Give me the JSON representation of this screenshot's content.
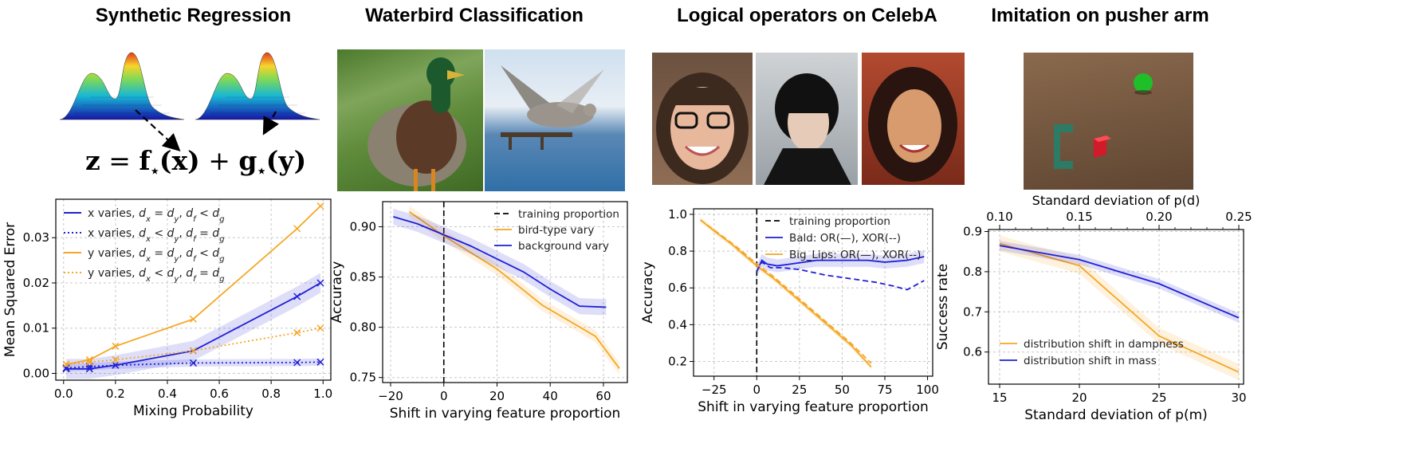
{
  "titles": {
    "p1": "Synthetic Regression",
    "p2": "Waterbird Classification",
    "p3": "Logical operators on CelebA",
    "p4": "Imitation on pusher arm"
  },
  "equation": {
    "lhs": "z",
    "eq": " = ",
    "f": "f",
    "x": "(x)",
    "plus": " + ",
    "g": "g",
    "y": "(y)",
    "star": "⋆"
  },
  "colors": {
    "blue": "#1f1fd6",
    "orange": "#f5a623",
    "dashed_black": "#000000"
  },
  "chart_data": [
    {
      "id": "c1",
      "type": "line",
      "title": "",
      "xlabel": "Mixing Probability",
      "ylabel": "Mean Squared Error",
      "xlim": [
        -0.03,
        1.03
      ],
      "ylim": [
        -0.0015,
        0.0385
      ],
      "xticks": [
        0.0,
        0.2,
        0.4,
        0.6,
        0.8,
        1.0
      ],
      "xticklabels": [
        "0.0",
        "0.2",
        "0.4",
        "0.6",
        "0.8",
        "1.0"
      ],
      "yticks": [
        0.0,
        0.01,
        0.02,
        0.03
      ],
      "yticklabels": [
        "0.00",
        "0.01",
        "0.02",
        "0.03"
      ],
      "grid": true,
      "legend": "upper-left",
      "series": [
        {
          "name": "x varies, d_x = d_y, d_f < d_g",
          "color": "blue",
          "style": "solid",
          "marker": "x",
          "x": [
            0.01,
            0.1,
            0.2,
            0.5,
            0.9,
            0.99
          ],
          "y": [
            0.001,
            0.001,
            0.0018,
            0.005,
            0.017,
            0.02
          ],
          "band": 0.0022
        },
        {
          "name": "x varies, d_x < d_y, d_f = d_g",
          "color": "blue",
          "style": "dotted",
          "marker": "x",
          "x": [
            0.01,
            0.1,
            0.2,
            0.5,
            0.9,
            0.99
          ],
          "y": [
            0.0012,
            0.0015,
            0.0018,
            0.0023,
            0.0024,
            0.0025
          ],
          "band": 0.0008
        },
        {
          "name": "y varies, d_x = d_y, d_f < d_g",
          "color": "orange",
          "style": "solid",
          "marker": "x",
          "x": [
            0.01,
            0.1,
            0.2,
            0.5,
            0.9,
            0.99
          ],
          "y": [
            0.002,
            0.003,
            0.006,
            0.012,
            0.032,
            0.037
          ],
          "band": 0.0
        },
        {
          "name": "y varies, d_x < d_y, d_f = d_g",
          "color": "orange",
          "style": "dotted",
          "marker": "x",
          "x": [
            0.01,
            0.1,
            0.2,
            0.5,
            0.9,
            0.99
          ],
          "y": [
            0.002,
            0.0025,
            0.003,
            0.005,
            0.009,
            0.01
          ],
          "band": 0.0
        }
      ],
      "legend_labels": [
        {
          "pre": "x varies, ",
          "sub1": "x",
          "mid": " = ",
          "sub2": "y",
          "mid2": ", ",
          "sub3": "f",
          "rel": " < ",
          "sub4": "g"
        },
        {
          "pre": "x varies, ",
          "sub1": "x",
          "mid": " < ",
          "sub2": "y",
          "mid2": ", ",
          "sub3": "f",
          "rel": " = ",
          "sub4": "g"
        },
        {
          "pre": "y varies, ",
          "sub1": "x",
          "mid": " = ",
          "sub2": "y",
          "mid2": ", ",
          "sub3": "f",
          "rel": " < ",
          "sub4": "g"
        },
        {
          "pre": "y varies, ",
          "sub1": "x",
          "mid": " < ",
          "sub2": "y",
          "mid2": ", ",
          "sub3": "f",
          "rel": " = ",
          "sub4": "g"
        }
      ]
    },
    {
      "id": "c2",
      "type": "line",
      "title": "",
      "xlabel": "Shift in varying feature proportion",
      "ylabel": "Accuracy",
      "xlim": [
        -23,
        69
      ],
      "ylim": [
        0.745,
        0.925
      ],
      "xticks": [
        -20,
        0,
        20,
        40,
        60
      ],
      "xticklabels": [
        "−20",
        "0",
        "20",
        "40",
        "60"
      ],
      "yticks": [
        0.75,
        0.8,
        0.85,
        0.9
      ],
      "yticklabels": [
        "0.75",
        "0.80",
        "0.85",
        "0.90"
      ],
      "grid": true,
      "legend": "upper-right",
      "vline": 0,
      "series": [
        {
          "name": "training proportion",
          "color": "dashed_black",
          "style": "dashed",
          "x": [],
          "y": []
        },
        {
          "name": "bird-type vary",
          "color": "orange",
          "style": "solid",
          "x": [
            -13,
            0,
            20,
            37,
            57,
            66
          ],
          "y": [
            0.915,
            0.891,
            0.858,
            0.822,
            0.791,
            0.759
          ],
          "band": 0.006
        },
        {
          "name": "background vary",
          "color": "blue",
          "style": "solid",
          "x": [
            -19,
            -10,
            0,
            10,
            20,
            30,
            40,
            51,
            61
          ],
          "y": [
            0.91,
            0.903,
            0.892,
            0.881,
            0.868,
            0.855,
            0.838,
            0.821,
            0.82
          ],
          "band": 0.008
        }
      ]
    },
    {
      "id": "c3",
      "type": "line",
      "title": "",
      "xlabel": "Shift in varying feature proportion",
      "ylabel": "Accuracy",
      "xlim": [
        -37,
        103
      ],
      "ylim": [
        0.12,
        1.03
      ],
      "xticks": [
        -25,
        0,
        25,
        50,
        75,
        100
      ],
      "xticklabels": [
        "−25",
        "0",
        "25",
        "50",
        "75",
        "100"
      ],
      "yticks": [
        0.2,
        0.4,
        0.6,
        0.8,
        1.0
      ],
      "yticklabels": [
        "0.2",
        "0.4",
        "0.6",
        "0.8",
        "1.0"
      ],
      "grid": true,
      "legend": "upper-right",
      "vline": 0,
      "series": [
        {
          "name": "training proportion",
          "color": "dashed_black",
          "style": "dashed",
          "x": [],
          "y": []
        },
        {
          "name": "Bald: OR(—), XOR(--)",
          "color": "blue",
          "style": "solid",
          "x": [
            0,
            3,
            6,
            12,
            20,
            35,
            50,
            65,
            75,
            88,
            98
          ],
          "y": [
            0.69,
            0.75,
            0.73,
            0.72,
            0.73,
            0.75,
            0.75,
            0.75,
            0.74,
            0.75,
            0.77
          ],
          "band": 0.035
        },
        {
          "name": "Big_Lips: OR(—), XOR(--)",
          "color": "orange",
          "style": "solid",
          "x": [
            -33,
            -25,
            -15,
            -5,
            0,
            10,
            25,
            40,
            55,
            67
          ],
          "y": [
            0.97,
            0.91,
            0.84,
            0.76,
            0.72,
            0.65,
            0.53,
            0.41,
            0.29,
            0.17
          ],
          "band": 0.015
        },
        {
          "name": "",
          "color": "blue",
          "style": "dashed",
          "x": [
            0,
            3,
            8,
            15,
            25,
            40,
            55,
            70,
            80,
            88,
            98
          ],
          "y": [
            0.69,
            0.74,
            0.71,
            0.71,
            0.7,
            0.67,
            0.65,
            0.63,
            0.61,
            0.59,
            0.64
          ],
          "band": 0.0
        },
        {
          "name": "",
          "color": "orange",
          "style": "dashed",
          "x": [
            -33,
            -20,
            -10,
            0,
            10,
            25,
            40,
            55,
            67
          ],
          "y": [
            0.97,
            0.88,
            0.81,
            0.73,
            0.66,
            0.54,
            0.42,
            0.3,
            0.19
          ],
          "band": 0.0
        }
      ]
    },
    {
      "id": "c4",
      "type": "line",
      "title": "",
      "xlabel": "Standard deviation of p(m)",
      "x2label": "Standard deviation of p(d)",
      "ylabel": "Success rate",
      "xlim": [
        14.3,
        30.3
      ],
      "ylim": [
        0.52,
        0.905
      ],
      "x2lim": [
        0.093,
        0.253
      ],
      "xticks": [
        15,
        20,
        25,
        30
      ],
      "xticklabels": [
        "15",
        "20",
        "25",
        "30"
      ],
      "x2ticks": [
        0.1,
        0.15,
        0.2,
        0.25
      ],
      "x2ticklabels": [
        "0.10",
        "0.15",
        "0.20",
        "0.25"
      ],
      "yticks": [
        0.6,
        0.7,
        0.8,
        0.9
      ],
      "yticklabels": [
        "0.6",
        "0.7",
        "0.8",
        "0.9"
      ],
      "grid": true,
      "legend": "lower-left",
      "series": [
        {
          "name": "distribution shift in dampness",
          "color": "orange",
          "style": "solid",
          "x": [
            15,
            20,
            25,
            30
          ],
          "y": [
            0.87,
            0.815,
            0.64,
            0.55
          ],
          "band": 0.02
        },
        {
          "name": "distribution shift in mass",
          "color": "blue",
          "style": "solid",
          "x": [
            15,
            20,
            25,
            30
          ],
          "y": [
            0.865,
            0.83,
            0.77,
            0.685
          ],
          "band": 0.012
        }
      ]
    }
  ]
}
